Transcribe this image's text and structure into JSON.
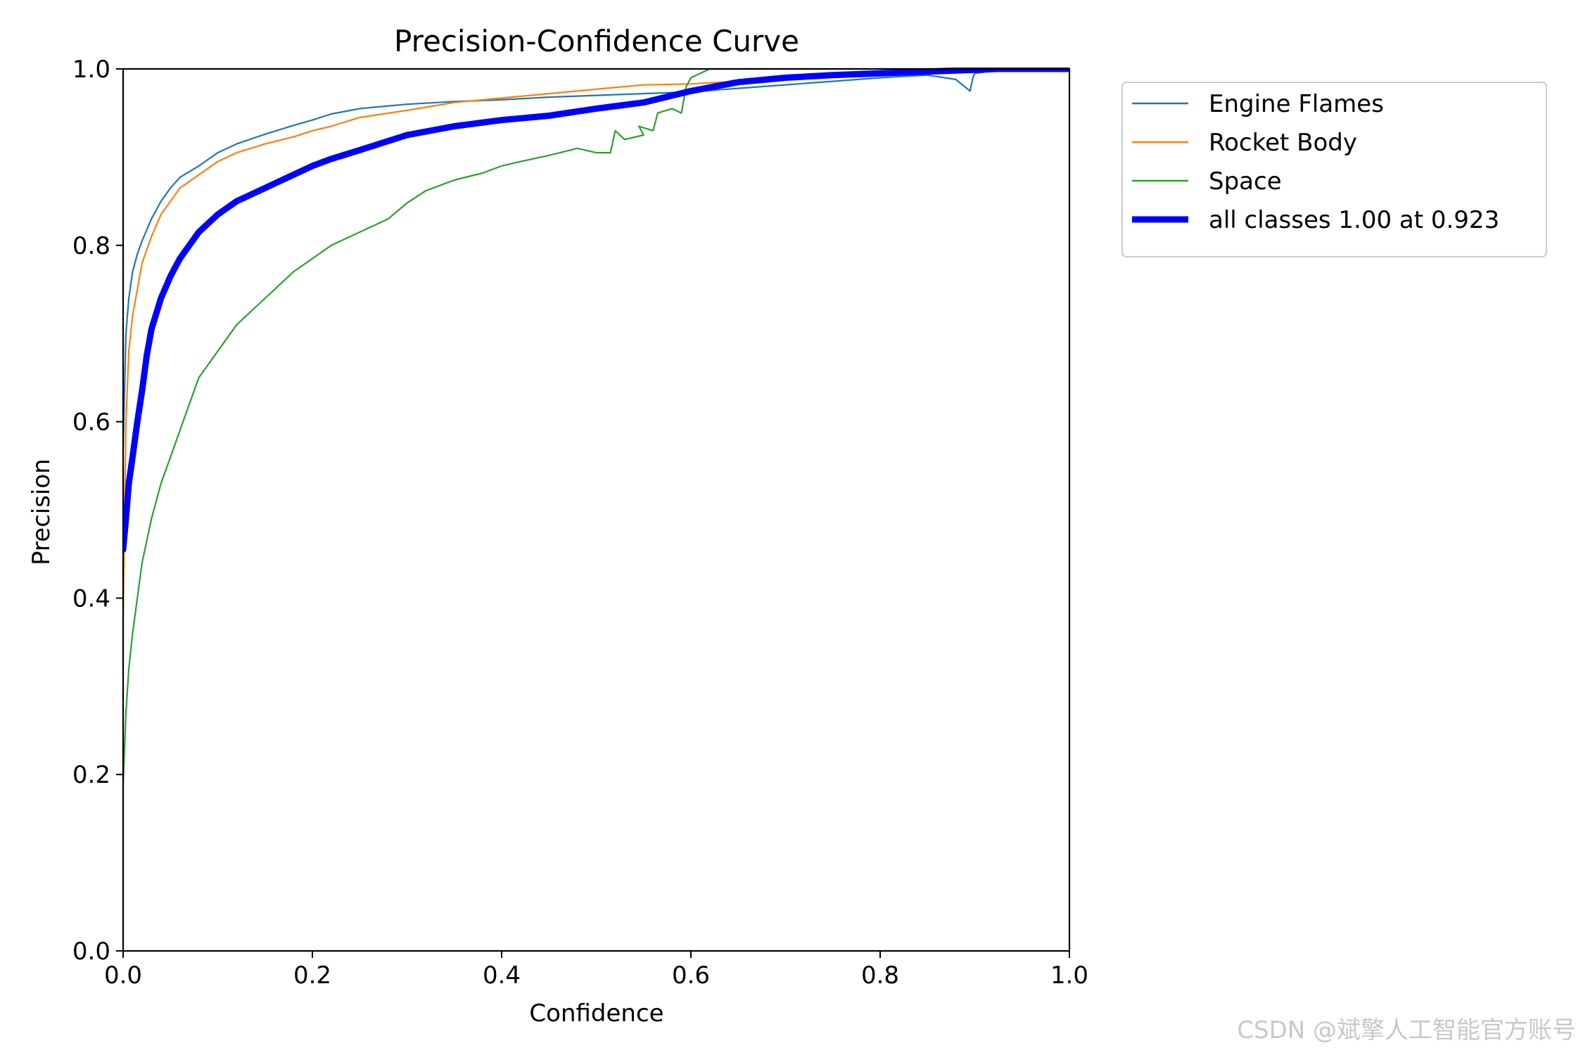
{
  "chart_data": {
    "type": "line",
    "title": "Precision-Confidence Curve",
    "xlabel": "Confidence",
    "ylabel": "Precision",
    "xlim": [
      0.0,
      1.0
    ],
    "ylim": [
      0.0,
      1.0
    ],
    "xticks": [
      "0.0",
      "0.2",
      "0.4",
      "0.6",
      "0.8",
      "1.0"
    ],
    "yticks": [
      "0.0",
      "0.2",
      "0.4",
      "0.6",
      "0.8",
      "1.0"
    ],
    "grid": false,
    "legend_position": "outside-top-right",
    "series": [
      {
        "name": "Engine Flames",
        "color": "#1f77b4",
        "x": [
          0.0,
          0.003,
          0.006,
          0.01,
          0.015,
          0.02,
          0.03,
          0.04,
          0.05,
          0.06,
          0.08,
          0.1,
          0.12,
          0.15,
          0.18,
          0.2,
          0.22,
          0.25,
          0.3,
          0.35,
          0.4,
          0.45,
          0.5,
          0.55,
          0.6,
          0.65,
          0.7,
          0.75,
          0.8,
          0.85,
          0.88,
          0.895,
          0.898,
          0.9,
          0.92,
          0.95,
          1.0
        ],
        "y": [
          0.57,
          0.7,
          0.74,
          0.77,
          0.79,
          0.805,
          0.83,
          0.85,
          0.865,
          0.877,
          0.89,
          0.905,
          0.915,
          0.926,
          0.936,
          0.942,
          0.949,
          0.955,
          0.96,
          0.963,
          0.965,
          0.968,
          0.97,
          0.972,
          0.974,
          0.978,
          0.982,
          0.986,
          0.99,
          0.993,
          0.988,
          0.975,
          0.99,
          0.995,
          0.998,
          1.0,
          1.0
        ]
      },
      {
        "name": "Rocket Body",
        "color": "#ff7f0e",
        "x": [
          0.0,
          0.003,
          0.006,
          0.01,
          0.015,
          0.02,
          0.03,
          0.04,
          0.05,
          0.06,
          0.08,
          0.1,
          0.12,
          0.15,
          0.18,
          0.2,
          0.22,
          0.25,
          0.3,
          0.35,
          0.4,
          0.45,
          0.5,
          0.55,
          0.6,
          0.65,
          0.7,
          0.75,
          0.8,
          0.85,
          0.9,
          0.95,
          1.0
        ],
        "y": [
          0.38,
          0.6,
          0.68,
          0.72,
          0.75,
          0.78,
          0.81,
          0.835,
          0.85,
          0.865,
          0.88,
          0.895,
          0.905,
          0.915,
          0.923,
          0.93,
          0.935,
          0.945,
          0.953,
          0.962,
          0.967,
          0.972,
          0.977,
          0.982,
          0.983,
          0.986,
          0.99,
          0.993,
          0.995,
          0.997,
          0.998,
          1.0,
          1.0
        ]
      },
      {
        "name": "Space",
        "color": "#2ca02c",
        "x": [
          0.0,
          0.003,
          0.006,
          0.01,
          0.015,
          0.02,
          0.03,
          0.04,
          0.05,
          0.06,
          0.07,
          0.08,
          0.1,
          0.12,
          0.15,
          0.18,
          0.2,
          0.22,
          0.25,
          0.28,
          0.3,
          0.32,
          0.35,
          0.38,
          0.4,
          0.42,
          0.45,
          0.48,
          0.5,
          0.515,
          0.52,
          0.53,
          0.55,
          0.545,
          0.56,
          0.565,
          0.58,
          0.59,
          0.595,
          0.6,
          0.62,
          0.65,
          0.7,
          0.75,
          0.8,
          0.9,
          1.0
        ],
        "y": [
          0.19,
          0.27,
          0.32,
          0.36,
          0.4,
          0.44,
          0.49,
          0.53,
          0.56,
          0.59,
          0.62,
          0.65,
          0.68,
          0.71,
          0.74,
          0.77,
          0.785,
          0.8,
          0.815,
          0.83,
          0.848,
          0.862,
          0.874,
          0.882,
          0.89,
          0.895,
          0.902,
          0.91,
          0.905,
          0.905,
          0.93,
          0.92,
          0.925,
          0.935,
          0.93,
          0.95,
          0.955,
          0.95,
          0.98,
          0.99,
          1.0,
          1.0,
          1.0,
          1.0,
          1.0,
          1.0,
          1.0
        ]
      },
      {
        "name": "all classes 1.00 at 0.923",
        "color": "#0000ff",
        "bold": true,
        "x": [
          0.0,
          0.003,
          0.006,
          0.01,
          0.015,
          0.02,
          0.025,
          0.03,
          0.04,
          0.05,
          0.06,
          0.07,
          0.08,
          0.1,
          0.12,
          0.15,
          0.18,
          0.2,
          0.22,
          0.25,
          0.3,
          0.35,
          0.4,
          0.45,
          0.5,
          0.55,
          0.6,
          0.65,
          0.7,
          0.75,
          0.8,
          0.85,
          0.9,
          0.923,
          0.95,
          1.0
        ],
        "y": [
          0.455,
          0.49,
          0.53,
          0.56,
          0.6,
          0.635,
          0.675,
          0.705,
          0.74,
          0.765,
          0.785,
          0.8,
          0.815,
          0.835,
          0.85,
          0.865,
          0.88,
          0.89,
          0.898,
          0.908,
          0.925,
          0.935,
          0.942,
          0.947,
          0.955,
          0.962,
          0.975,
          0.985,
          0.99,
          0.993,
          0.995,
          0.997,
          0.999,
          1.0,
          1.0,
          1.0
        ]
      }
    ]
  },
  "watermark": "CSDN @斌擎人工智能官方账号"
}
